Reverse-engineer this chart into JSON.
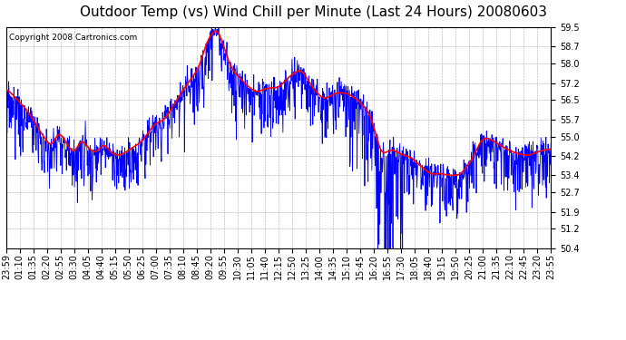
{
  "title": "Outdoor Temp (vs) Wind Chill per Minute (Last 24 Hours) 20080603",
  "copyright_text": "Copyright 2008 Cartronics.com",
  "y_ticks": [
    50.4,
    51.2,
    51.9,
    52.7,
    53.4,
    54.2,
    55.0,
    55.7,
    56.5,
    57.2,
    58.0,
    58.7,
    59.5
  ],
  "ylim": [
    50.4,
    59.5
  ],
  "x_labels": [
    "23:59",
    "01:10",
    "01:35",
    "02:20",
    "02:55",
    "03:30",
    "04:05",
    "04:40",
    "05:15",
    "05:50",
    "06:25",
    "07:00",
    "07:35",
    "08:10",
    "08:45",
    "09:20",
    "09:55",
    "10:30",
    "11:05",
    "11:40",
    "12:15",
    "12:50",
    "13:25",
    "14:00",
    "14:35",
    "15:10",
    "15:45",
    "16:20",
    "16:55",
    "17:30",
    "18:05",
    "18:40",
    "19:15",
    "19:50",
    "20:25",
    "21:00",
    "21:35",
    "22:10",
    "22:45",
    "23:20",
    "23:55"
  ],
  "background_color": "#ffffff",
  "plot_bg_color": "#ffffff",
  "grid_color": "#aaaaaa",
  "blue_line_color": "#0000ff",
  "red_line_color": "#ff0000",
  "title_fontsize": 11,
  "tick_fontsize": 7,
  "copyright_fontsize": 6.5
}
